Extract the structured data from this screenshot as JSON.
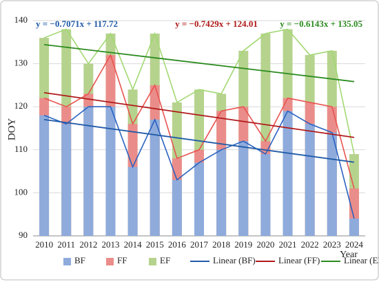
{
  "chart_data": {
    "type": "overlap-bar-line",
    "y_label": "DOY",
    "x_label": "Year",
    "categories": [
      "2010",
      "2011",
      "2012",
      "2013",
      "2014",
      "2015",
      "2016",
      "2017",
      "2018",
      "2019",
      "2020",
      "2021",
      "2022",
      "2023",
      "2024"
    ],
    "series": [
      {
        "name": "EF",
        "color": "#b6d38e",
        "line_color": "#a3d873",
        "values": [
          136,
          138,
          130,
          137,
          124,
          137,
          121,
          124,
          123,
          133,
          137,
          138,
          132,
          133,
          109
        ]
      },
      {
        "name": "FF",
        "color": "#ea8d8a",
        "line_color": "#e8534f",
        "values": [
          122,
          120,
          123,
          132,
          116,
          125,
          108,
          110,
          119,
          120,
          112,
          122,
          121,
          120,
          101
        ]
      },
      {
        "name": "BF",
        "color": "#8eabdc",
        "line_color": "#2a62c0",
        "values": [
          118,
          116,
          120,
          120,
          106,
          117,
          103,
          107,
          110,
          112,
          109,
          119,
          116,
          114,
          94
        ]
      }
    ],
    "trendlines": [
      {
        "name": "Linear (BF)",
        "series": 2,
        "color": "#1f5aa8",
        "equation": "y = −0.7071x + 117.72"
      },
      {
        "name": "Linear (FF)",
        "series": 1,
        "color": "#b01818",
        "equation": "y = −0.7429x + 124.01"
      },
      {
        "name": "Linear (EF)",
        "series": 0,
        "color": "#2a8a1e",
        "equation": "y = −0.6143x + 135.05"
      }
    ],
    "ylim": [
      90,
      140
    ],
    "yticks": [
      90,
      100,
      110,
      120,
      130,
      140
    ],
    "grid": true
  }
}
